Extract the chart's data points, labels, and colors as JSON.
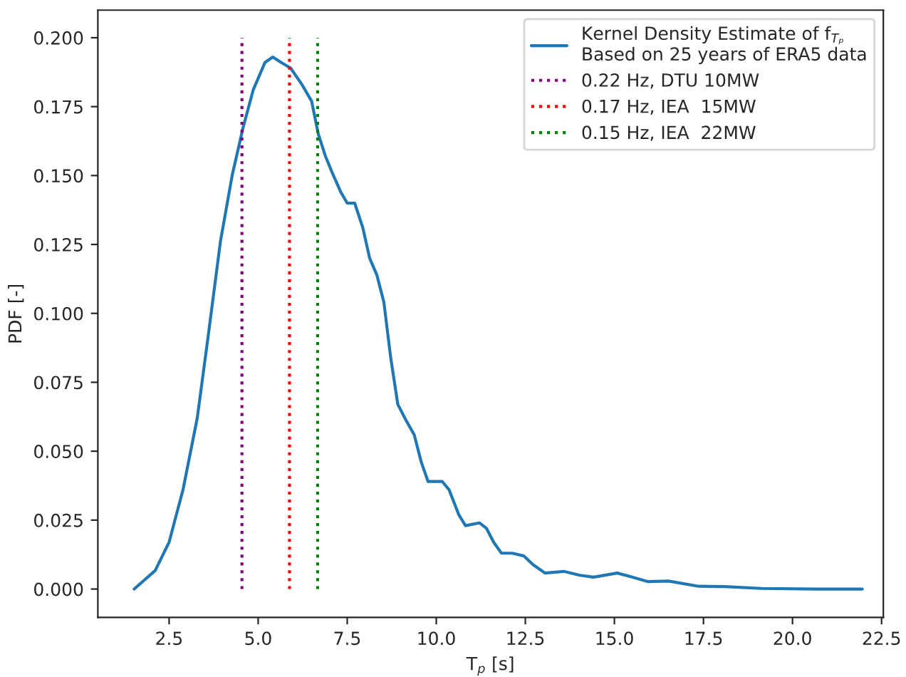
{
  "chart_data": {
    "type": "line",
    "xlabel": "T$_{p}$ [s]",
    "ylabel": "PDF [-]",
    "xlim": [
      0.5,
      22.55
    ],
    "ylim": [
      -0.0103,
      0.21
    ],
    "xticks": [
      {
        "value": 2.5,
        "label": "2.5"
      },
      {
        "value": 5,
        "label": "5.0"
      },
      {
        "value": 7.5,
        "label": "7.5"
      },
      {
        "value": 10,
        "label": "10.0"
      },
      {
        "value": 12.5,
        "label": "12.5"
      },
      {
        "value": 15,
        "label": "15.0"
      },
      {
        "value": 17.5,
        "label": "17.5"
      },
      {
        "value": 20,
        "label": "20.0"
      },
      {
        "value": 22.5,
        "label": "22.5"
      }
    ],
    "yticks": [
      {
        "value": 0,
        "label": "0.000"
      },
      {
        "value": 0.025,
        "label": "0.025"
      },
      {
        "value": 0.05,
        "label": "0.050"
      },
      {
        "value": 0.075,
        "label": "0.075"
      },
      {
        "value": 0.1,
        "label": "0.100"
      },
      {
        "value": 0.125,
        "label": "0.125"
      },
      {
        "value": 0.15,
        "label": "0.150"
      },
      {
        "value": 0.175,
        "label": "0.175"
      },
      {
        "value": 0.2,
        "label": "0.200"
      }
    ],
    "grid": false,
    "legend": "top right",
    "marker": "none",
    "series": [
      {
        "name": "Kernel Density Estimate of f$_{Tₚ}$\nBased on 25 years of ERA5 data",
        "color": "#1f77b4",
        "line_style": "solid",
        "x": [
          1.52,
          2.11,
          2.5,
          2.89,
          3.29,
          3.61,
          3.94,
          4.27,
          4.57,
          4.86,
          5.19,
          5.41,
          5.65,
          5.91,
          6.23,
          6.5,
          6.69,
          6.89,
          7.08,
          7.32,
          7.5,
          7.71,
          7.94,
          8.13,
          8.33,
          8.53,
          8.72,
          8.92,
          9.16,
          9.38,
          9.58,
          9.77,
          9.97,
          10.17,
          10.36,
          10.63,
          10.82,
          11.21,
          11.41,
          11.61,
          11.83,
          12.13,
          12.46,
          12.72,
          13.05,
          13.58,
          14.03,
          14.42,
          15.08,
          15.48,
          15.93,
          16.52,
          17.37,
          18.1,
          19.14,
          20.72,
          21.96
        ],
        "values": [
          0.0,
          0.0067,
          0.017,
          0.036,
          0.062,
          0.093,
          0.126,
          0.15,
          0.167,
          0.181,
          0.191,
          0.193,
          0.191,
          0.189,
          0.183,
          0.177,
          0.165,
          0.157,
          0.151,
          0.144,
          0.14,
          0.14,
          0.131,
          0.12,
          0.114,
          0.104,
          0.084,
          0.067,
          0.061,
          0.056,
          0.046,
          0.039,
          0.039,
          0.039,
          0.036,
          0.027,
          0.023,
          0.024,
          0.022,
          0.017,
          0.013,
          0.013,
          0.012,
          0.0088,
          0.0058,
          0.0064,
          0.005,
          0.0043,
          0.0058,
          0.0044,
          0.0027,
          0.0029,
          0.001,
          0.0009,
          0.0002,
          0.0,
          0.0
        ]
      },
      {
        "name": "0.22 Hz, DTU 10MW",
        "color": "#800080",
        "line_style": "dotted",
        "x": [
          4.545,
          4.545
        ],
        "values": [
          0.0,
          0.2
        ]
      },
      {
        "name": "0.17 Hz, IEA  15MW",
        "color": "#ff0000",
        "line_style": "dotted",
        "x": [
          5.88,
          5.88
        ],
        "values": [
          0.0,
          0.2
        ]
      },
      {
        "name": "0.15 Hz, IEA  22MW",
        "color": "#008000",
        "line_style": "dotted",
        "x": [
          6.67,
          6.67
        ],
        "values": [
          0.0,
          0.2
        ]
      }
    ]
  }
}
